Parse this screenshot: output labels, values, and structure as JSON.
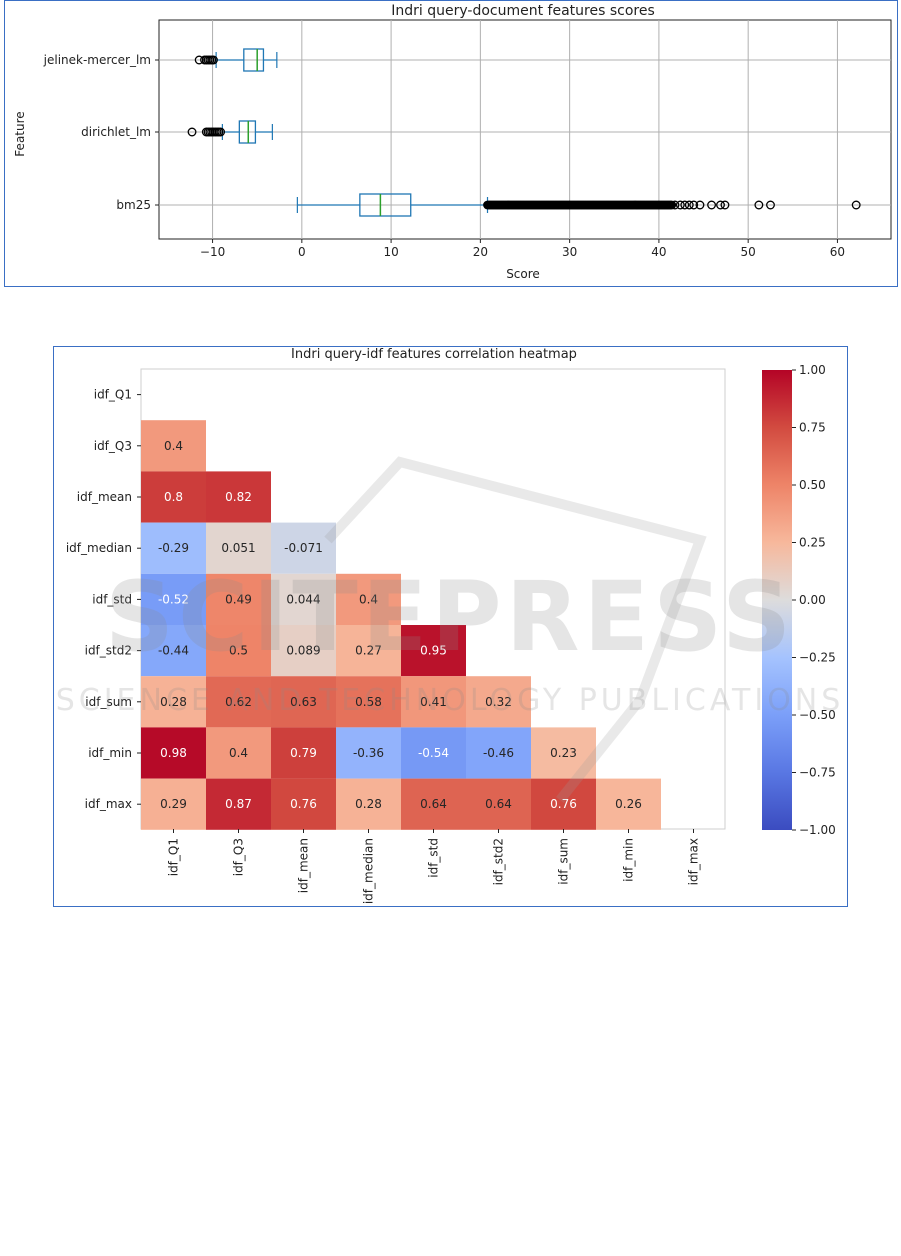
{
  "chart_data": [
    {
      "type": "box",
      "title": "Indri query-document features scores",
      "xlabel": "Score",
      "ylabel": "Feature",
      "orientation": "horizontal",
      "xlim": [
        -16,
        66
      ],
      "x_ticks": [
        -10,
        0,
        10,
        20,
        30,
        40,
        50,
        60
      ],
      "x_tick_labels": [
        "−10",
        "0",
        "10",
        "20",
        "30",
        "40",
        "50",
        "60"
      ],
      "grid": true,
      "categories": [
        "jelinek-mercer_lm",
        "dirichlet_lm",
        "bm25"
      ],
      "boxes": [
        {
          "name": "jelinek-mercer_lm",
          "whisker_low": -9.6,
          "q1": -6.5,
          "median": -5.0,
          "q3": -4.3,
          "whisker_high": -2.8,
          "outliers": [
            -11.5,
            -10.9,
            -10.7,
            -10.5,
            -10.3,
            -10.1,
            -9.9
          ]
        },
        {
          "name": "dirichlet_lm",
          "whisker_low": -8.9,
          "q1": -7.0,
          "median": -6.0,
          "q3": -5.2,
          "whisker_high": -3.3,
          "outliers": [
            -12.3,
            -10.7,
            -10.5,
            -10.3,
            -10.1,
            -9.9,
            -9.7,
            -9.5,
            -9.3,
            -9.1
          ]
        },
        {
          "name": "bm25",
          "whisker_low": -0.5,
          "q1": 6.5,
          "median": 8.8,
          "q3": 12.2,
          "whisker_high": 20.8,
          "outliers_dense_range": [
            20.8,
            41.5
          ],
          "outliers": [
            41.8,
            42.4,
            42.9,
            43.4,
            43.9,
            44.6,
            45.9,
            46.9,
            47.4,
            51.2,
            52.5,
            62.1
          ]
        }
      ],
      "colors": {
        "box": "#1f77b4",
        "median": "#2ca02c",
        "outlier": "#000000"
      }
    },
    {
      "type": "heatmap",
      "title": "Indri query-idf features correlation heatmap",
      "labels": [
        "idf_Q1",
        "idf_Q3",
        "idf_mean",
        "idf_median",
        "idf_std",
        "idf_std2",
        "idf_sum",
        "idf_min",
        "idf_max"
      ],
      "matrix": [
        [
          null,
          null,
          null,
          null,
          null,
          null,
          null,
          null,
          null
        ],
        [
          0.4,
          null,
          null,
          null,
          null,
          null,
          null,
          null,
          null
        ],
        [
          0.8,
          0.82,
          null,
          null,
          null,
          null,
          null,
          null,
          null
        ],
        [
          -0.29,
          0.051,
          -0.071,
          null,
          null,
          null,
          null,
          null,
          null
        ],
        [
          -0.52,
          0.49,
          0.044,
          0.4,
          null,
          null,
          null,
          null,
          null
        ],
        [
          -0.44,
          0.5,
          0.089,
          0.27,
          0.95,
          null,
          null,
          null,
          null
        ],
        [
          0.28,
          0.62,
          0.63,
          0.58,
          0.41,
          0.32,
          null,
          null,
          null
        ],
        [
          0.98,
          0.4,
          0.79,
          -0.36,
          -0.54,
          -0.46,
          0.23,
          null,
          null
        ],
        [
          0.29,
          0.87,
          0.76,
          0.28,
          0.64,
          0.64,
          0.76,
          0.26,
          null
        ]
      ],
      "colorbar": {
        "cmap": "coolwarm",
        "vmin": -1.0,
        "vmax": 1.0,
        "ticks": [
          1.0,
          0.75,
          0.5,
          0.25,
          0.0,
          -0.25,
          -0.5,
          -0.75,
          -1.0
        ],
        "tick_labels": [
          "1.00",
          "0.75",
          "0.50",
          "0.25",
          "0.00",
          "−0.25",
          "−0.50",
          "−0.75",
          "−1.00"
        ]
      }
    }
  ],
  "watermark": {
    "line1": "SCITEPRESS",
    "line2": "SCIENCE AND TECHNOLOGY PUBLICATIONS"
  }
}
